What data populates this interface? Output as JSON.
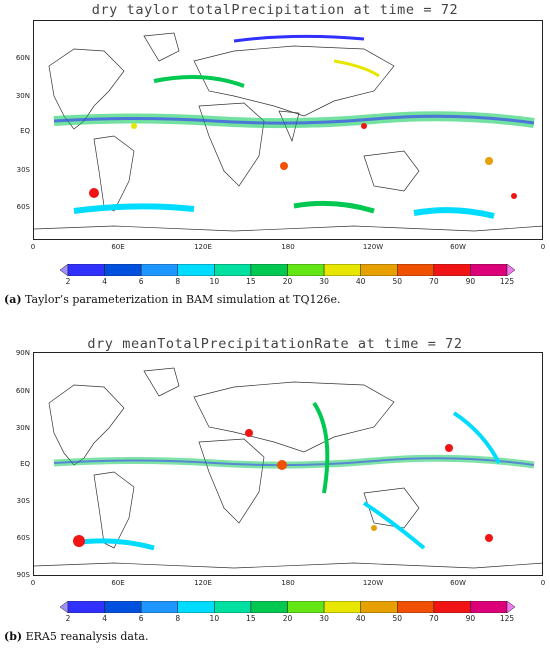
{
  "panel_a": {
    "title": "dry taylor totalPrecipitation at time = 72",
    "lat_labels": [
      "60N",
      "30N",
      "EQ",
      "30S",
      "60S"
    ],
    "lon_labels": [
      "0",
      "60E",
      "120E",
      "180",
      "120W",
      "60W",
      "0"
    ],
    "caption_letter": "(a)",
    "caption_text": " Taylor’s parameterization in BAM simulation at TQ126e."
  },
  "panel_b": {
    "title": "dry meanTotalPrecipitationRate at time = 72",
    "lat_labels": [
      "90N",
      "60N",
      "30N",
      "EQ",
      "30S",
      "60S",
      "90S"
    ],
    "lon_labels": [
      "0",
      "60E",
      "120E",
      "180",
      "120W",
      "60W",
      "0"
    ],
    "caption_letter": "(b)",
    "caption_text": " ERA5 reanalysis data."
  },
  "colorbar": {
    "ticks": [
      "2",
      "4",
      "6",
      "8",
      "10",
      "15",
      "20",
      "30",
      "40",
      "50",
      "70",
      "90",
      "125"
    ],
    "colors": [
      "#a090ff",
      "#3030ff",
      "#0050e0",
      "#1e96ff",
      "#00dcff",
      "#00e0a0",
      "#00c850",
      "#64e614",
      "#e6e600",
      "#e6a000",
      "#f05000",
      "#f01414",
      "#dc0078",
      "#f078f0"
    ]
  }
}
